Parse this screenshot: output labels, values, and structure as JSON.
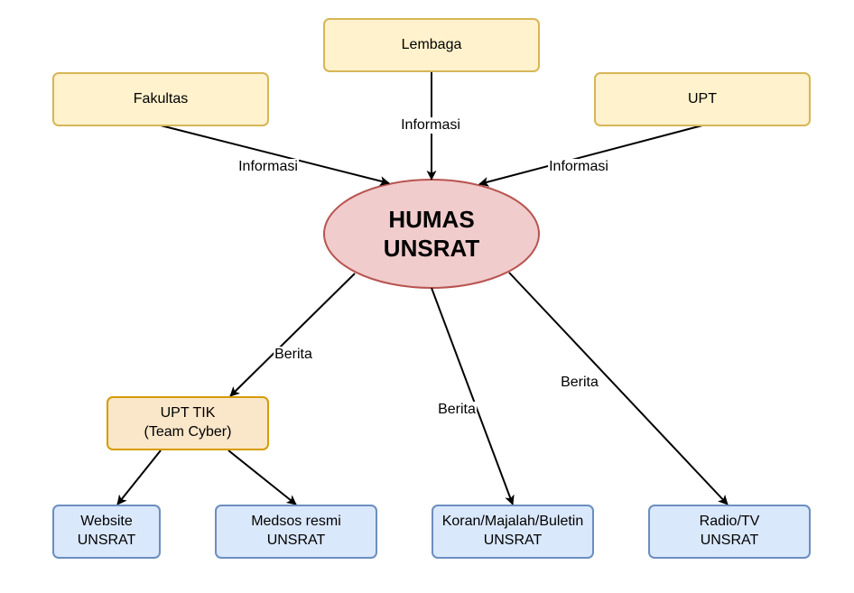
{
  "nodes": {
    "lembaga": "Lembaga",
    "fakultas": "Fakultas",
    "upt": "UPT",
    "humas": "HUMAS\nUNSRAT",
    "upt_tik": "UPT TIK\n(Team Cyber)",
    "website": "Website\nUNSRAT",
    "medsos": "Medsos resmi\nUNSRAT",
    "koran": "Koran/Majalah/Buletin\nUNSRAT",
    "radio": "Radio/TV\nUNSRAT"
  },
  "edge_labels": {
    "lembaga_humas": "Informasi",
    "fakultas_humas": "Informasi",
    "upt_humas": "Informasi",
    "humas_upt_tik": "Berita",
    "humas_koran": "Berita",
    "humas_radio": "Berita"
  },
  "colors": {
    "source_fill": "#fff2cc",
    "source_stroke": "#d6b656",
    "center_fill": "#f0cccc",
    "center_stroke": "#b85450",
    "tik_fill": "#fae6c9",
    "tik_stroke": "#d79b00",
    "output_fill": "#dae8fc",
    "output_stroke": "#6c8ebf"
  }
}
